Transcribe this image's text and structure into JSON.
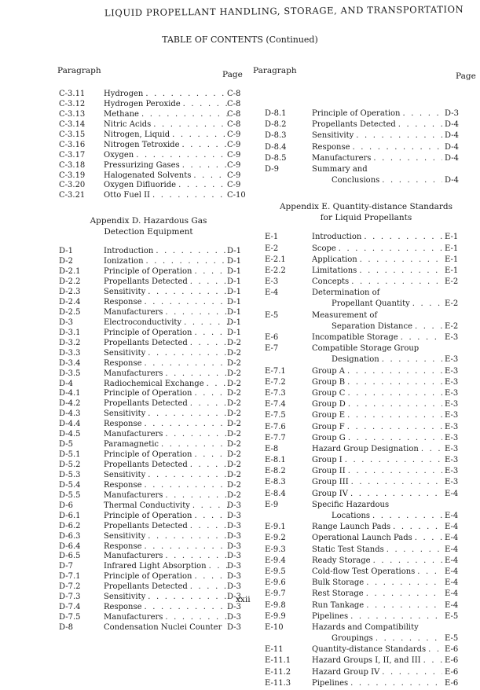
{
  "running_head": "LIQUID PROPELLANT HANDLING, STORAGE, AND TRANSPORTATION",
  "toc_title": "TABLE OF CONTENTS (Continued)",
  "column_headers": {
    "paragraph": "Paragraph",
    "page": "Page"
  },
  "left": {
    "entries_c": [
      {
        "num": "C-3.11",
        "title": "Hydrogen",
        "page": "C-8"
      },
      {
        "num": "C-3.12",
        "title": "Hydrogen Peroxide",
        "page": "C-8"
      },
      {
        "num": "C-3.13",
        "title": "Methane",
        "page": "C-8"
      },
      {
        "num": "C-3.14",
        "title": "Nitric Acids",
        "page": "C-8"
      },
      {
        "num": "C-3.15",
        "title": "Nitrogen, Liquid",
        "page": "C-9"
      },
      {
        "num": "C-3.16",
        "title": "Nitrogen Tetroxide",
        "page": "C-9"
      },
      {
        "num": "C-3.17",
        "title": "Oxygen",
        "page": "C-9"
      },
      {
        "num": "C-3.18",
        "title": "Pressurizing Gases",
        "page": "C-9"
      },
      {
        "num": "C-3.19",
        "title": "Halogenated Solvents",
        "page": "C-9"
      },
      {
        "num": "C-3.20",
        "title": "Oxygen Difluoride",
        "page": "C-9"
      },
      {
        "num": "C-3.21",
        "title": "Otto Fuel II",
        "page": "C-10"
      }
    ],
    "appendix_d": {
      "line1": "Appendix D.  Hazardous Gas",
      "line2": "Detection Equipment"
    },
    "entries_d": [
      {
        "num": "D-1",
        "title": "Introduction",
        "page": "D-1"
      },
      {
        "num": "D-2",
        "title": "Ionization",
        "page": "D-1"
      },
      {
        "num": "D-2.1",
        "title": "Principle of Operation",
        "page": "D-1"
      },
      {
        "num": "D-2.2",
        "title": "Propellants Detected",
        "page": "D-1"
      },
      {
        "num": "D-2.3",
        "title": "Sensitivity",
        "page": "D-1"
      },
      {
        "num": "D-2.4",
        "title": "Response",
        "page": "D-1"
      },
      {
        "num": "D-2.5",
        "title": "Manufacturers",
        "page": "D-1"
      },
      {
        "num": "D-3",
        "title": "Electroconductivity",
        "page": "D-1"
      },
      {
        "num": "D-3.1",
        "title": "Principle of Operation",
        "page": "D-1"
      },
      {
        "num": "D-3.2",
        "title": "Propellants Detected",
        "page": "D-2"
      },
      {
        "num": "D-3.3",
        "title": "Sensitivity",
        "page": "D-2"
      },
      {
        "num": "D-3.4",
        "title": "Response",
        "page": "D-2"
      },
      {
        "num": "D-3.5",
        "title": "Manufacturers",
        "page": "D-2"
      },
      {
        "num": "D-4",
        "title": "Radiochemical Exchange",
        "page": "D-2"
      },
      {
        "num": "D-4.1",
        "title": "Principle of Operation",
        "page": "D-2"
      },
      {
        "num": "D-4.2",
        "title": "Propellants Detected",
        "page": "D-2"
      },
      {
        "num": "D-4.3",
        "title": "Sensitivity",
        "page": "D-2"
      },
      {
        "num": "D-4.4",
        "title": "Response",
        "page": "D-2"
      },
      {
        "num": "D-4.5",
        "title": "Manufacturers",
        "page": "D-2"
      },
      {
        "num": "D-5",
        "title": "Paramagnetic",
        "page": "D-2"
      },
      {
        "num": "D-5.1",
        "title": "Principle of Operation",
        "page": "D-2"
      },
      {
        "num": "D-5.2",
        "title": "Propellants Detected",
        "page": "D-2"
      },
      {
        "num": "D-5.3",
        "title": "Sensitivity",
        "page": "D-2"
      },
      {
        "num": "D-5.4",
        "title": "Response",
        "page": "D-2"
      },
      {
        "num": "D-5.5",
        "title": "Manufacturers",
        "page": "D-2"
      },
      {
        "num": "D-6",
        "title": "Thermal Conductivity",
        "page": "D-3"
      },
      {
        "num": "D-6.1",
        "title": "Principle of Operation",
        "page": "D-3"
      },
      {
        "num": "D-6.2",
        "title": "Propellants Detected",
        "page": "D-3"
      },
      {
        "num": "D-6.3",
        "title": "Sensitivity",
        "page": "D-3"
      },
      {
        "num": "D-6.4",
        "title": "Response",
        "page": "D-3"
      },
      {
        "num": "D-6.5",
        "title": "Manufacturers",
        "page": "D-3"
      },
      {
        "num": "D-7",
        "title": "Infrared Light Absorption",
        "page": "D-3"
      },
      {
        "num": "D-7.1",
        "title": "Principle of Operation",
        "page": "D-3"
      },
      {
        "num": "D-7.2",
        "title": "Propellants Detected",
        "page": "D-3"
      },
      {
        "num": "D-7.3",
        "title": "Sensitivity",
        "page": "D-3"
      },
      {
        "num": "D-7.4",
        "title": "Response",
        "page": "D-3"
      },
      {
        "num": "D-7.5",
        "title": "Manufacturers",
        "page": "D-3"
      },
      {
        "num": "D-8",
        "title": "Condensation Nuclei Counter",
        "page": "D-3",
        "nodots": true
      }
    ]
  },
  "right": {
    "entries_d": [
      {
        "num": "D-8.1",
        "title": "Principle of Operation",
        "page": "D-3"
      },
      {
        "num": "D-8.2",
        "title": "Propellants Detected",
        "page": "D-4"
      },
      {
        "num": "D-8.3",
        "title": "Sensitivity",
        "page": "D-4"
      },
      {
        "num": "D-8.4",
        "title": "Response",
        "page": "D-4"
      },
      {
        "num": "D-8.5",
        "title": "Manufacturers",
        "page": "D-4"
      },
      {
        "num": "D-9",
        "title": "Summary and",
        "title2": "Conclusions",
        "page": "D-4"
      }
    ],
    "appendix_e": {
      "line1": "Appendix E.  Quantity-distance Standards",
      "line2": "for Liquid Propellants"
    },
    "entries_e": [
      {
        "num": "E-1",
        "title": "Introduction",
        "page": "E-1"
      },
      {
        "num": "E-2",
        "title": "Scope",
        "page": "E-1"
      },
      {
        "num": "E-2.1",
        "title": "Application",
        "page": "E-1"
      },
      {
        "num": "E-2.2",
        "title": "Limitations",
        "page": "E-1"
      },
      {
        "num": "E-3",
        "title": "Concepts",
        "page": "E-2"
      },
      {
        "num": "E-4",
        "title": "Determination of",
        "title2": "Propellant Quantity",
        "page": "E-2"
      },
      {
        "num": "E-5",
        "title": "Measurement of",
        "title2": "Separation Distance",
        "page": "E-2"
      },
      {
        "num": "E-6",
        "title": "Incompatible Storage",
        "page": "E-3"
      },
      {
        "num": "E-7",
        "title": "Compatible Storage Group",
        "title2": "Designation",
        "page": "E-3"
      },
      {
        "num": "E-7.1",
        "title": "Group A",
        "page": "E-3"
      },
      {
        "num": "E-7.2",
        "title": "Group B",
        "page": "E-3"
      },
      {
        "num": "E-7.3",
        "title": "Group C",
        "page": "E-3"
      },
      {
        "num": "E-7.4",
        "title": "Group D",
        "page": "E-3"
      },
      {
        "num": "E-7.5",
        "title": "Group E",
        "page": "E-3"
      },
      {
        "num": "E-7.6",
        "title": "Group F",
        "page": "E-3"
      },
      {
        "num": "E-7.7",
        "title": "Group G",
        "page": "E-3"
      },
      {
        "num": "E-8",
        "title": "Hazard Group Designation",
        "page": "E-3"
      },
      {
        "num": "E-8.1",
        "title": "Group I",
        "page": "E-3"
      },
      {
        "num": "E-8.2",
        "title": "Group II",
        "page": "E-3"
      },
      {
        "num": "E-8.3",
        "title": "Group III",
        "page": "E-3"
      },
      {
        "num": "E-8.4",
        "title": "Group IV",
        "page": "E-4"
      },
      {
        "num": "E-9",
        "title": "Specific Hazardous",
        "title2": "Locations",
        "page": "E-4"
      },
      {
        "num": "E-9.1",
        "title": "Range Launch Pads",
        "page": "E-4"
      },
      {
        "num": "E-9.2",
        "title": "Operational Launch Pads",
        "page": "E-4"
      },
      {
        "num": "E-9.3",
        "title": "Static Test Stands",
        "page": "E-4"
      },
      {
        "num": "E-9.4",
        "title": "Ready Storage",
        "page": "E-4"
      },
      {
        "num": "E-9.5",
        "title": "Cold-flow Test Operations",
        "page": "E-4"
      },
      {
        "num": "E-9.6",
        "title": "Bulk Storage",
        "page": "E-4"
      },
      {
        "num": "E-9.7",
        "title": "Rest Storage",
        "page": "E-4"
      },
      {
        "num": "E-9.8",
        "title": "Run Tankage",
        "page": "E-4"
      },
      {
        "num": "E-9.9",
        "title": "Pipelines",
        "page": "E-5"
      },
      {
        "num": "E-10",
        "title": "Hazards and Compatibility",
        "title2": "Groupings",
        "page": "E-5"
      },
      {
        "num": "E-11",
        "title": "Quantity-distance Standards",
        "page": "E-6"
      },
      {
        "num": "E-11.1",
        "title": "Hazard Groups I, II, and III",
        "page": "E-6"
      },
      {
        "num": "E-11.2",
        "title": "Hazard Group IV",
        "page": "E-6"
      },
      {
        "num": "E-11.3",
        "title": "Pipelines",
        "page": "E-6"
      }
    ]
  },
  "folio": "xxii"
}
